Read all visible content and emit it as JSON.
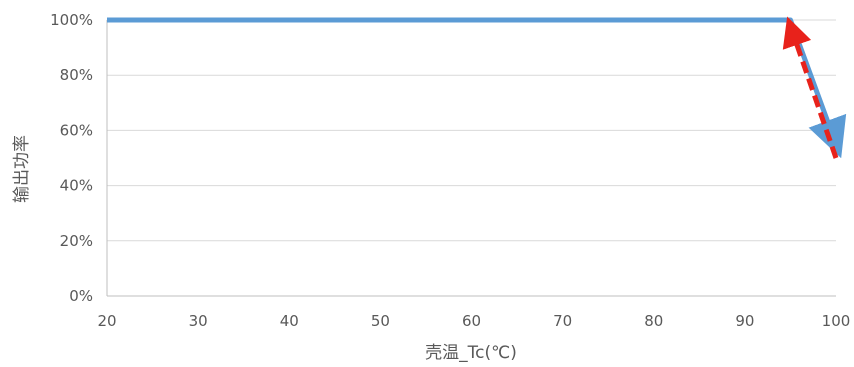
{
  "chart_data": {
    "type": "line",
    "title": "",
    "xlabel": "壳温_Tc(℃)",
    "ylabel": "输出功率",
    "xlim": [
      20,
      100
    ],
    "ylim": [
      0,
      1
    ],
    "x_ticks": [
      20,
      30,
      40,
      50,
      60,
      70,
      80,
      90,
      100
    ],
    "x_tick_labels": [
      "20",
      "30",
      "40",
      "50",
      "60",
      "70",
      "80",
      "90",
      "100"
    ],
    "y_ticks": [
      0,
      0.2,
      0.4,
      0.6,
      0.8,
      1.0
    ],
    "y_tick_labels": [
      "0%",
      "20%",
      "40%",
      "60%",
      "80%",
      "100%"
    ],
    "grid": "horizontal",
    "legend": "none",
    "series": [
      {
        "style": "solid-with-end-arrow",
        "color": "#5B9BD5",
        "x": [
          20,
          95,
          100
        ],
        "y": [
          1.0,
          1.0,
          0.55
        ]
      }
    ],
    "annotations": [
      {
        "type": "dashed-arrow",
        "color": "#E8221B",
        "from": {
          "x": 100,
          "y": 0.5
        },
        "to": {
          "x": 95,
          "y": 1.0
        }
      }
    ],
    "colors": {
      "grid": "#D9D9D9",
      "axis": "#BFBFBF",
      "text": "#595959"
    }
  }
}
